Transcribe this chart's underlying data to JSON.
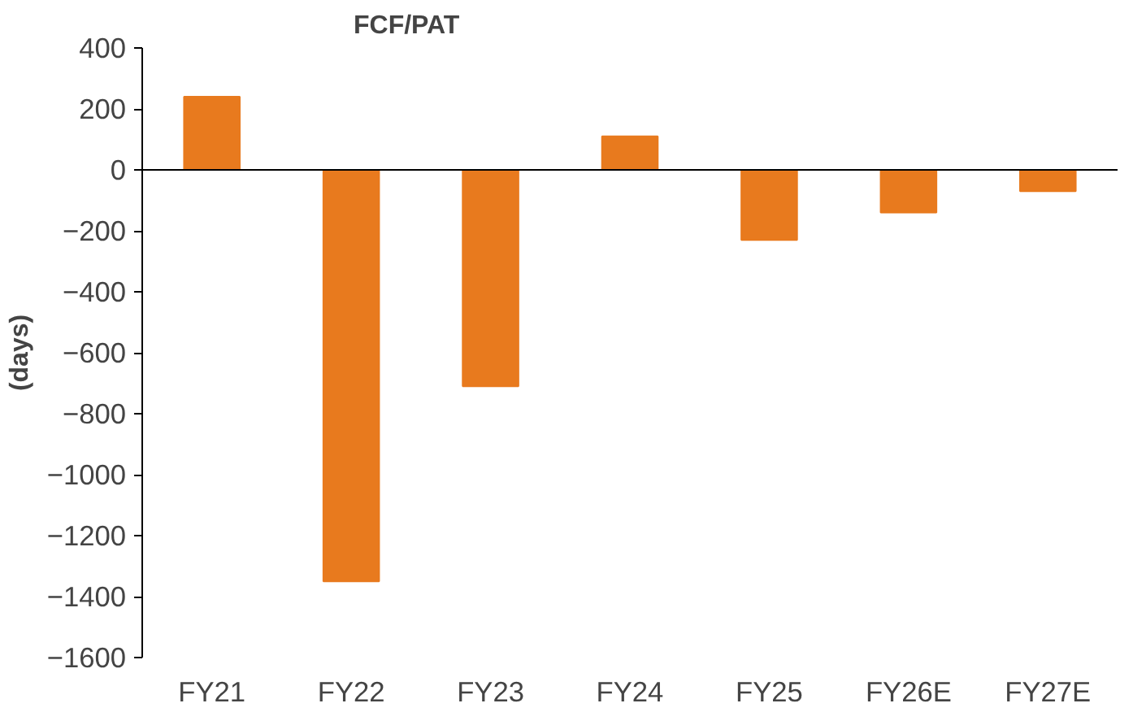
{
  "chart_data": {
    "type": "bar",
    "title": "FCF/PAT",
    "ylabel": "(days)",
    "categories": [
      "FY21",
      "FY22",
      "FY23",
      "FY24",
      "FY25",
      "FY26E",
      "FY27E"
    ],
    "values": [
      240,
      -1350,
      -710,
      110,
      -230,
      -140,
      -70
    ],
    "color": "#e87a1e",
    "ylim": [
      -1600,
      400
    ],
    "yticks": [
      -1600,
      -1400,
      -1200,
      -1000,
      -800,
      -600,
      -400,
      -200,
      0,
      200,
      400
    ]
  }
}
